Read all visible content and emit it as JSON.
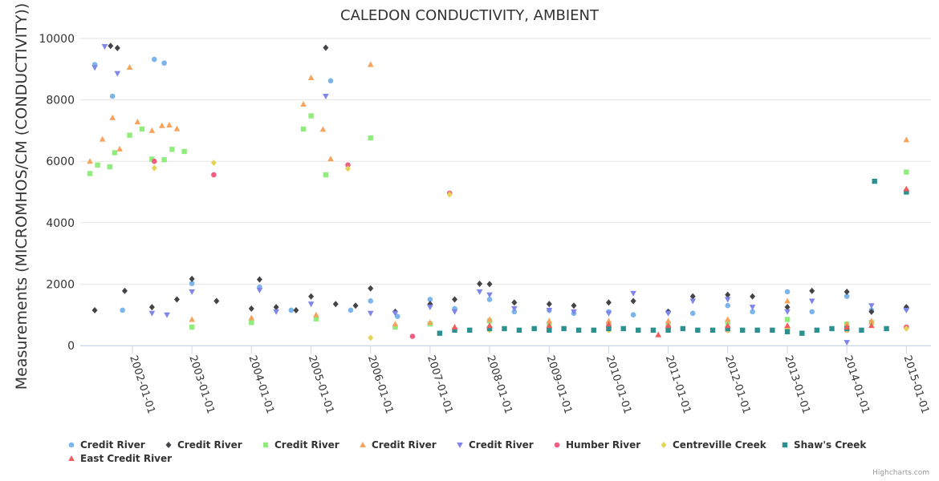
{
  "chart_data": {
    "type": "scatter",
    "title": "CALEDON CONDUCTIVITY, AMBIENT",
    "ylabel": "Measurements (MICROMHOS/CM (CONDUCTIVITY))",
    "xlabel": "",
    "ylim": [
      0,
      10000
    ],
    "yticks": [
      0,
      2000,
      4000,
      6000,
      8000,
      10000
    ],
    "xlim": [
      "2001-02-15",
      "2015-06-01"
    ],
    "xticks": [
      "2002-01-01",
      "2003-01-01",
      "2004-01-01",
      "2005-01-01",
      "2006-01-01",
      "2007-01-01",
      "2008-01-01",
      "2009-01-01",
      "2010-01-01",
      "2011-01-01",
      "2012-01-01",
      "2013-01-01",
      "2014-01-01",
      "2015-01-01"
    ],
    "xtick_labels": [
      "2002-01-01",
      "2003-01-01",
      "2004-01-01",
      "2005-01-01",
      "2006-01-01",
      "2007-01-01",
      "2008-01-01",
      "2009-01-01",
      "2010-01-01",
      "2011-01-01",
      "2012-01-01",
      "2013-01-01",
      "2014-01-01",
      "2015-01-01"
    ],
    "legend_position": "bottom",
    "grid": true,
    "series": [
      {
        "name": "Credit River",
        "color": "#7cb5ec",
        "marker": "circle",
        "x": [
          "2001-05-15",
          "2001-09-01",
          "2001-11-01",
          "2002-05-15",
          "2002-07-15",
          "2003-01-01",
          "2004-02-20",
          "2004-09-01",
          "2005-05-01",
          "2005-09-01",
          "2006-01-01",
          "2006-06-15",
          "2007-01-01",
          "2007-06-01",
          "2008-01-01",
          "2008-06-01",
          "2009-01-01",
          "2009-06-01",
          "2010-01-01",
          "2010-06-01",
          "2011-01-01",
          "2011-06-01",
          "2012-01-01",
          "2012-06-01",
          "2013-01-01",
          "2013-06-01",
          "2014-01-01",
          "2014-06-01",
          "2015-01-01"
        ],
        "y": [
          9150,
          8120,
          1150,
          9320,
          9200,
          2020,
          1900,
          1150,
          8620,
          1150,
          1450,
          950,
          1500,
          1200,
          1500,
          1100,
          1150,
          1050,
          1100,
          1000,
          1100,
          1050,
          1300,
          1100,
          1750,
          1100,
          1600,
          1150,
          1200
        ]
      },
      {
        "name": "Credit River",
        "color": "#434348",
        "marker": "diamond",
        "x": [
          "2001-05-15",
          "2001-08-20",
          "2001-10-01",
          "2001-11-15",
          "2002-05-01",
          "2002-10-01",
          "2003-01-01",
          "2003-06-01",
          "2004-01-01",
          "2004-02-20",
          "2004-06-01",
          "2004-10-01",
          "2005-01-01",
          "2005-04-01",
          "2005-06-01",
          "2005-10-01",
          "2006-01-01",
          "2006-06-01",
          "2007-01-01",
          "2007-06-01",
          "2007-11-01",
          "2008-01-01",
          "2008-06-01",
          "2009-01-01",
          "2009-06-01",
          "2010-01-01",
          "2010-06-01",
          "2011-01-01",
          "2011-06-01",
          "2012-01-01",
          "2012-06-01",
          "2013-01-01",
          "2013-06-01",
          "2014-01-01",
          "2014-06-01",
          "2015-01-01"
        ],
        "y": [
          1150,
          9760,
          9690,
          1780,
          1250,
          1500,
          2170,
          1450,
          1200,
          2150,
          1250,
          1150,
          1600,
          9700,
          1350,
          1300,
          1860,
          1100,
          1350,
          1500,
          2010,
          2000,
          1400,
          1350,
          1300,
          1400,
          1450,
          1100,
          1600,
          1650,
          1600,
          1250,
          1780,
          1750,
          1100,
          1250
        ]
      },
      {
        "name": "Credit River",
        "color": "#90ed7d",
        "marker": "square",
        "x": [
          "2001-04-15",
          "2001-06-01",
          "2001-08-15",
          "2001-09-15",
          "2001-12-15",
          "2002-03-01",
          "2002-05-01",
          "2002-07-15",
          "2002-09-01",
          "2002-11-15",
          "2003-01-01",
          "2004-01-01",
          "2004-11-15",
          "2005-01-01",
          "2005-02-01",
          "2005-04-01",
          "2006-01-01",
          "2006-06-01",
          "2007-01-01",
          "2008-01-01",
          "2009-01-01",
          "2010-01-01",
          "2011-01-01",
          "2012-01-01",
          "2013-01-01",
          "2014-01-01",
          "2014-06-01",
          "2015-01-01"
        ],
        "y": [
          5600,
          5880,
          5820,
          6280,
          6850,
          7050,
          6070,
          6050,
          6390,
          6320,
          600,
          750,
          7050,
          7480,
          870,
          5560,
          6760,
          600,
          700,
          800,
          700,
          700,
          700,
          750,
          850,
          700,
          750,
          5650
        ]
      },
      {
        "name": "Credit River",
        "color": "#f7a35c",
        "marker": "triangle",
        "x": [
          "2001-04-15",
          "2001-07-01",
          "2001-09-01",
          "2001-10-15",
          "2001-12-15",
          "2002-02-01",
          "2002-05-01",
          "2002-07-01",
          "2002-08-15",
          "2002-10-01",
          "2003-01-01",
          "2004-01-01",
          "2004-11-15",
          "2005-01-01",
          "2005-02-01",
          "2005-03-15",
          "2005-05-01",
          "2006-01-01",
          "2006-06-01",
          "2007-01-01",
          "2008-01-01",
          "2009-01-01",
          "2010-01-01",
          "2011-01-01",
          "2012-01-01",
          "2013-01-01",
          "2014-01-01",
          "2014-06-01",
          "2015-01-01"
        ],
        "y": [
          6000,
          6720,
          7420,
          6400,
          9060,
          7280,
          7000,
          7160,
          7180,
          7060,
          850,
          900,
          7860,
          8720,
          1000,
          7040,
          6080,
          9150,
          700,
          750,
          850,
          800,
          800,
          800,
          850,
          1450,
          700,
          800,
          6700
        ]
      },
      {
        "name": "Credit River",
        "color": "#8085e9",
        "marker": "triangle-down",
        "x": [
          "2001-05-15",
          "2001-07-15",
          "2001-10-01",
          "2002-05-01",
          "2002-08-01",
          "2003-01-01",
          "2004-02-20",
          "2004-06-01",
          "2005-01-01",
          "2005-04-01",
          "2006-01-01",
          "2006-06-01",
          "2007-01-01",
          "2007-06-01",
          "2007-11-01",
          "2008-01-01",
          "2008-06-01",
          "2009-01-01",
          "2009-06-01",
          "2010-01-01",
          "2010-06-01",
          "2011-01-01",
          "2011-06-01",
          "2012-01-01",
          "2012-06-01",
          "2013-01-01",
          "2013-06-01",
          "2014-01-01",
          "2014-06-01",
          "2015-01-01"
        ],
        "y": [
          9050,
          9740,
          8860,
          1050,
          1000,
          1750,
          1800,
          1100,
          1350,
          8120,
          1050,
          1050,
          1250,
          1100,
          1750,
          1650,
          1200,
          1150,
          1100,
          1050,
          1700,
          1050,
          1450,
          1500,
          1250,
          1100,
          1450,
          100,
          1300,
          1150
        ]
      },
      {
        "name": "Humber River",
        "color": "#f15c80",
        "marker": "circle",
        "x": [
          "2002-05-15",
          "2003-05-15",
          "2005-08-15",
          "2006-09-15",
          "2007-05-01",
          "2008-01-01",
          "2009-01-01",
          "2010-01-01",
          "2011-01-01",
          "2012-01-01",
          "2013-01-01",
          "2014-01-01",
          "2015-01-01"
        ],
        "y": [
          6000,
          5560,
          5880,
          300,
          4960,
          550,
          550,
          600,
          600,
          500,
          550,
          500,
          600
        ]
      },
      {
        "name": "Centreville Creek",
        "color": "#e4d354",
        "marker": "diamond",
        "x": [
          "2002-05-15",
          "2003-05-15",
          "2005-08-15",
          "2006-01-01",
          "2007-05-01",
          "2008-01-01",
          "2009-01-01",
          "2010-01-01",
          "2011-01-01",
          "2012-01-01",
          "2013-01-01",
          "2014-01-01",
          "2015-01-01"
        ],
        "y": [
          5780,
          5950,
          5760,
          250,
          4920,
          500,
          550,
          500,
          550,
          500,
          550,
          500,
          550
        ]
      },
      {
        "name": "Shaw's Creek",
        "color": "#2b908f",
        "marker": "square",
        "x": [
          "2007-03-01",
          "2007-06-01",
          "2007-09-01",
          "2008-01-01",
          "2008-04-01",
          "2008-07-01",
          "2008-10-01",
          "2009-01-01",
          "2009-04-01",
          "2009-07-01",
          "2009-10-01",
          "2010-01-01",
          "2010-04-01",
          "2010-07-01",
          "2010-10-01",
          "2011-01-01",
          "2011-04-01",
          "2011-07-01",
          "2011-10-01",
          "2012-01-01",
          "2012-04-01",
          "2012-07-01",
          "2012-10-01",
          "2013-01-01",
          "2013-04-01",
          "2013-07-01",
          "2013-10-01",
          "2014-01-01",
          "2014-04-01",
          "2014-06-20",
          "2014-09-01",
          "2015-01-01"
        ],
        "y": [
          400,
          500,
          500,
          550,
          550,
          500,
          550,
          500,
          550,
          500,
          500,
          550,
          550,
          500,
          500,
          500,
          550,
          500,
          500,
          550,
          500,
          500,
          500,
          450,
          400,
          500,
          550,
          550,
          500,
          5350,
          550,
          5000
        ]
      },
      {
        "name": "East Credit River",
        "color": "#f45b5b",
        "marker": "triangle",
        "x": [
          "2007-06-01",
          "2008-01-01",
          "2009-01-01",
          "2010-01-01",
          "2010-11-01",
          "2011-01-01",
          "2012-01-01",
          "2013-01-01",
          "2014-01-01",
          "2014-06-01",
          "2015-01-01"
        ],
        "y": [
          600,
          650,
          650,
          700,
          350,
          650,
          650,
          650,
          600,
          650,
          5100
        ]
      }
    ]
  },
  "credits": "Highcharts.com"
}
